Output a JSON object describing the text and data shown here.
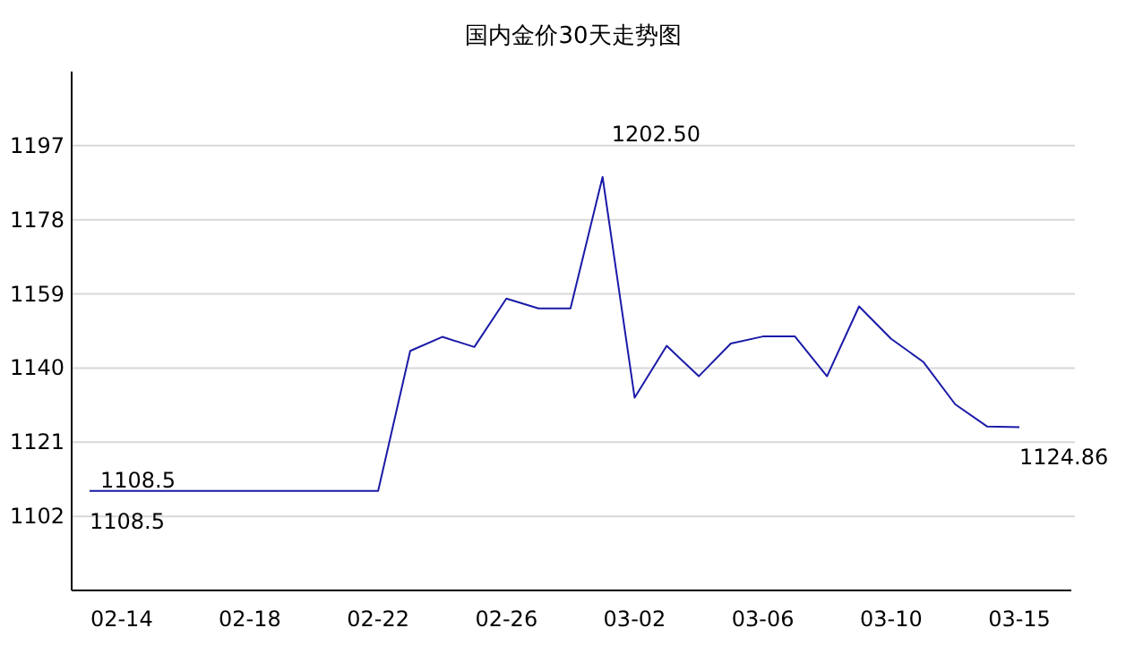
{
  "chart_data": {
    "type": "line",
    "title": "国内金价30天走势图",
    "categories": [
      null,
      "02-14",
      null,
      null,
      null,
      "02-18",
      null,
      null,
      null,
      "02-22",
      null,
      null,
      null,
      "02-26",
      null,
      null,
      null,
      "03-02",
      null,
      null,
      null,
      "03-06",
      null,
      null,
      null,
      "03-10",
      null,
      null,
      null,
      "03-15"
    ],
    "series": [
      {
        "color": "#1a1aa8",
        "values": [
          1108.5,
          1108.5,
          1108.5,
          1108.5,
          1108.5,
          1108.5,
          1108.5,
          1108.5,
          1108.5,
          1108.5,
          1144.4,
          1148.0,
          1145.4,
          1157.8,
          1155.3,
          1155.3,
          1189.0,
          1132.4,
          1145.7,
          1137.9,
          1146.3,
          1148.1,
          1148.1,
          1137.9,
          1155.8,
          1147.5,
          1141.6,
          1130.7,
          1125.0,
          1124.86
        ]
      }
    ],
    "ylim": [
      1083,
      1216
    ],
    "yticks": [
      1102,
      1121,
      1140,
      1159,
      1178,
      1197
    ],
    "grid": "y",
    "annotations": [
      "1108.5",
      "1108.5",
      "1202.50",
      "1124.86"
    ]
  }
}
